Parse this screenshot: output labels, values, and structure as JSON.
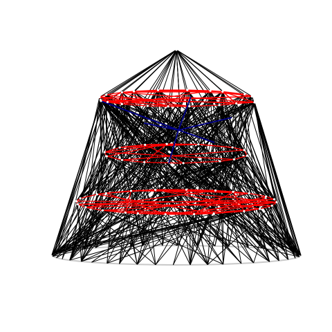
{
  "diagram": {
    "type": "layered-network-graph",
    "layers": [
      {
        "name": "apex",
        "node_count": 1
      },
      {
        "name": "upper-ring",
        "node_count": 20
      },
      {
        "name": "middle-ring",
        "node_count": 14
      },
      {
        "name": "lower-ring",
        "node_count": 24
      },
      {
        "name": "base-ring",
        "node_count": 44
      }
    ],
    "edge_groups": [
      {
        "name": "black-edges",
        "color": "#000000"
      },
      {
        "name": "red-edges",
        "color": "#ff0000"
      },
      {
        "name": "blue-edges",
        "color": "#00008b"
      },
      {
        "name": "base-ring-edges",
        "color": "#c8c8c8"
      }
    ]
  }
}
